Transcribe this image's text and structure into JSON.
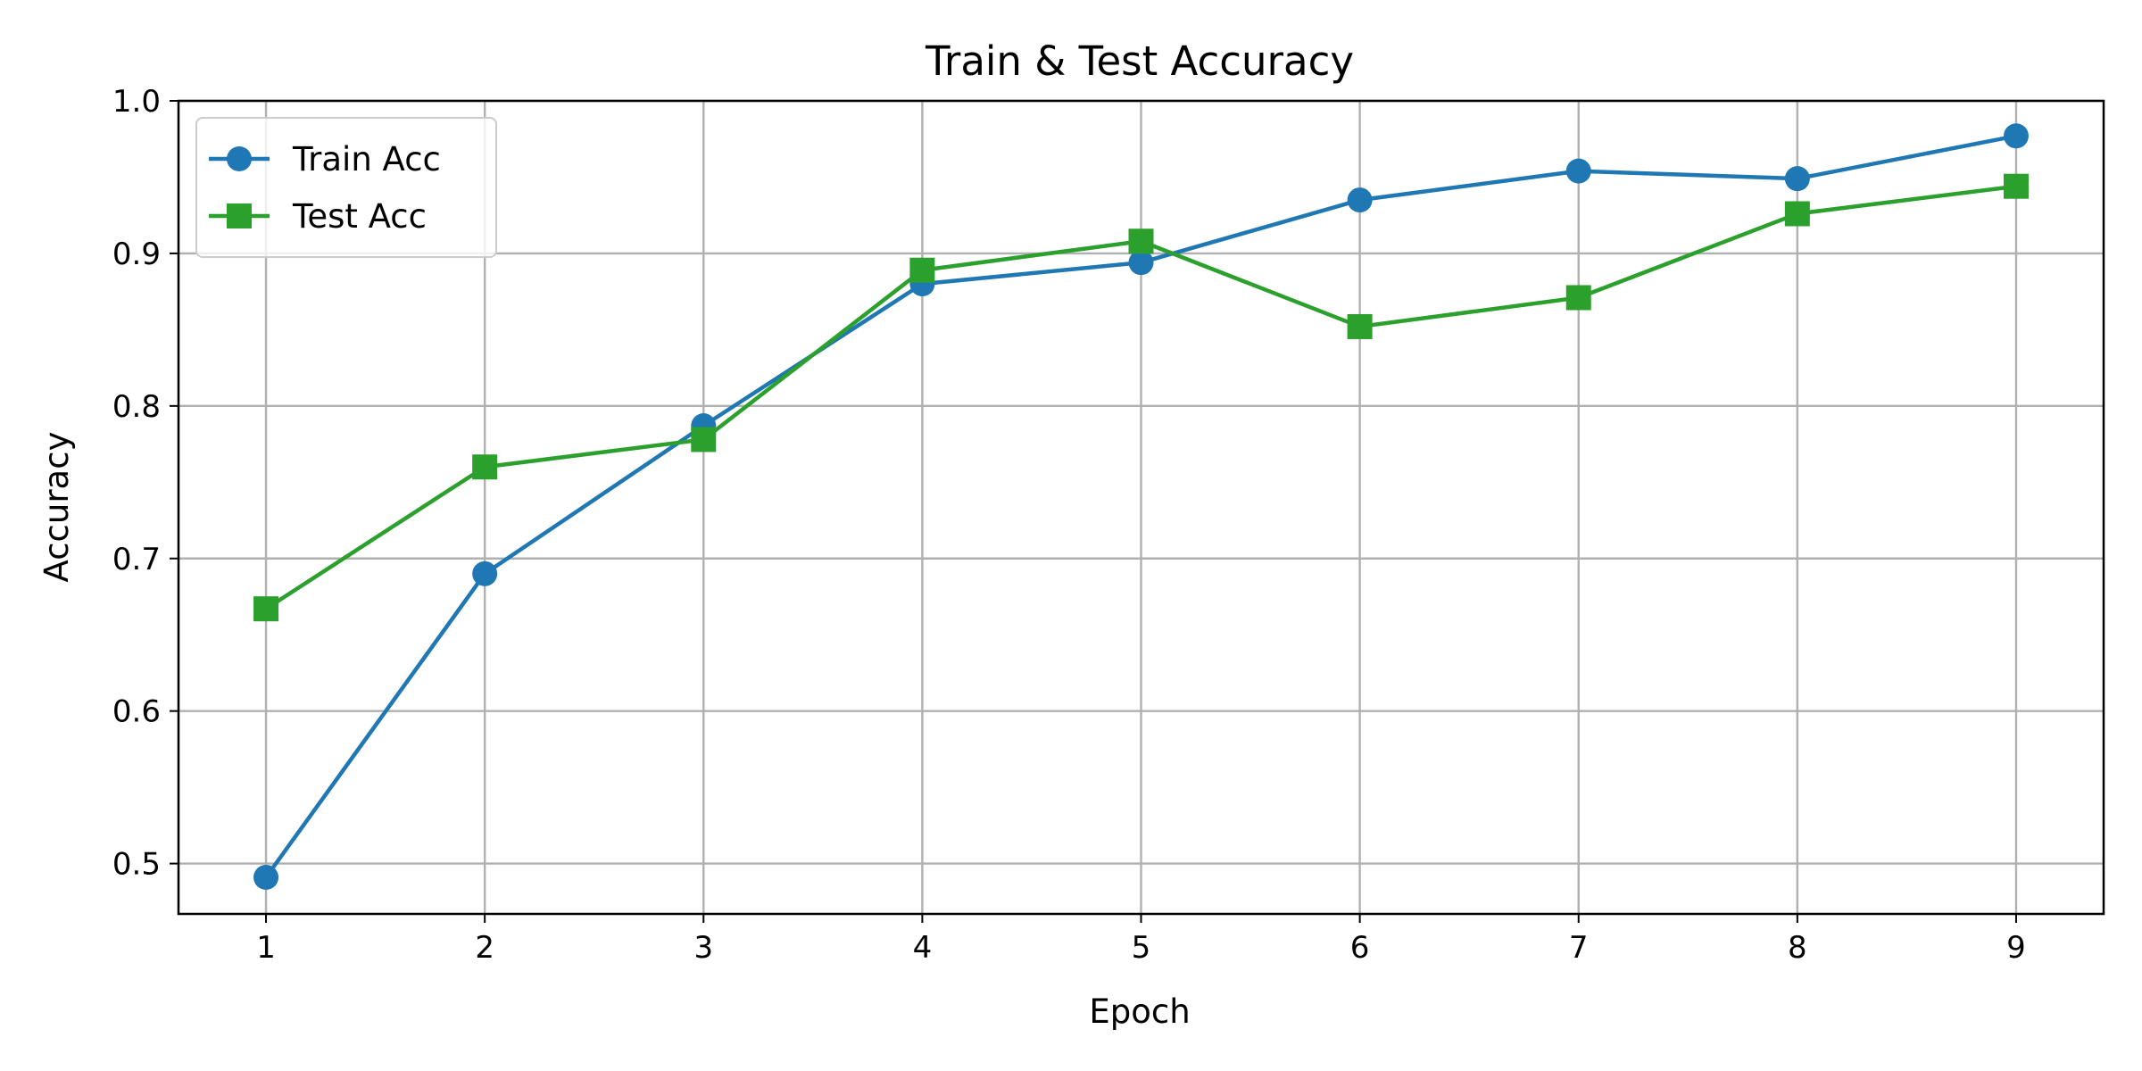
{
  "chart_data": {
    "type": "line",
    "title": "Train & Test Accuracy",
    "xlabel": "Epoch",
    "ylabel": "Accuracy",
    "x": [
      1,
      2,
      3,
      4,
      5,
      6,
      7,
      8,
      9
    ],
    "xlim": [
      0.6,
      9.4
    ],
    "ylim": [
      0.467,
      1.0
    ],
    "xticks": [
      "1",
      "2",
      "3",
      "4",
      "5",
      "6",
      "7",
      "8",
      "9"
    ],
    "yticks": [
      "0.5",
      "0.6",
      "0.7",
      "0.8",
      "0.9",
      "1.0"
    ],
    "grid": true,
    "legend_position": "top-left",
    "series": [
      {
        "name": "Train Acc",
        "color": "#1f77b4",
        "marker": "circle",
        "values": [
          0.491,
          0.69,
          0.787,
          0.88,
          0.894,
          0.935,
          0.954,
          0.949,
          0.977
        ]
      },
      {
        "name": "Test Acc",
        "color": "#2ca02c",
        "marker": "square",
        "values": [
          0.667,
          0.76,
          0.778,
          0.889,
          0.908,
          0.852,
          0.871,
          0.926,
          0.944
        ]
      }
    ]
  }
}
